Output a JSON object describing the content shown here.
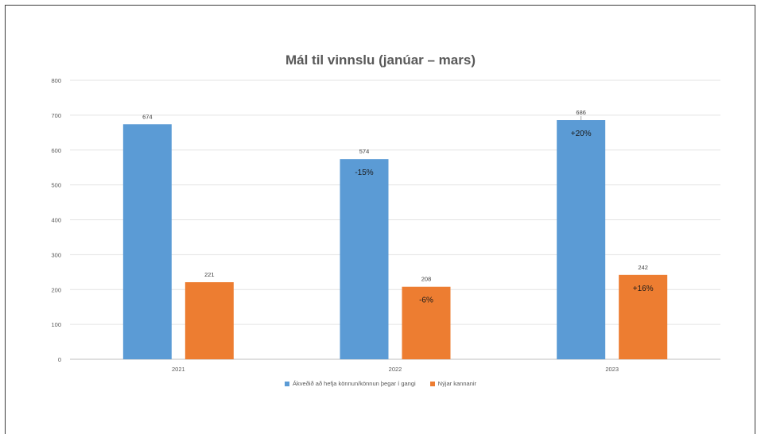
{
  "chart_data": {
    "type": "bar",
    "title": "Mál til vinnslu (janúar – mars)",
    "xlabel": "",
    "ylabel": "",
    "ylim": [
      0,
      800
    ],
    "yticks": [
      0,
      100,
      200,
      300,
      400,
      500,
      600,
      700,
      800
    ],
    "categories": [
      "2021",
      "2022",
      "2023"
    ],
    "grid": true,
    "legend_position": "bottom",
    "series": [
      {
        "name": "Ákveðið að hefja könnun/könnun þegar í gangi",
        "color": "#5b9bd5",
        "values": [
          674,
          574,
          686
        ],
        "annotations": [
          "",
          "-15%",
          "+20%"
        ]
      },
      {
        "name": "Nýjar kannanir",
        "color": "#ed7d31",
        "values": [
          221,
          208,
          242
        ],
        "annotations": [
          "",
          "-6%",
          "+16%"
        ]
      }
    ]
  }
}
